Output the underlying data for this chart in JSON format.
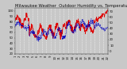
{
  "title": "Milwaukee Weather  Outdoor Humidity vs. Temperature Every 5 Minutes",
  "background_color": "#c8c8c8",
  "plot_bg_color": "#c8c8c8",
  "red_color": "#dd0000",
  "blue_color": "#0000bb",
  "grid_color": "#ffffff",
  "ylim_left": [
    20,
    105
  ],
  "ylim_right": [
    -5,
    75
  ],
  "n_points": 400,
  "title_fontsize": 3.8,
  "tick_fontsize": 2.8,
  "right_yticks": [
    0,
    10,
    20,
    30,
    40,
    50,
    60,
    70
  ],
  "left_yticks": [
    20,
    30,
    40,
    50,
    60,
    70,
    80,
    90,
    100
  ]
}
